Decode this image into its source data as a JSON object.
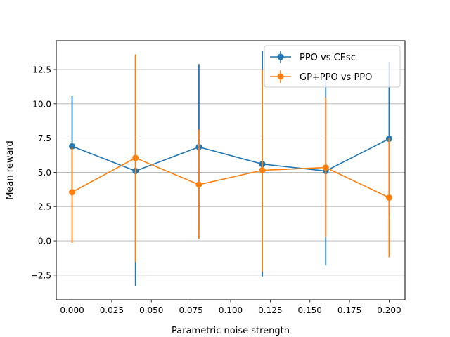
{
  "chart_data": {
    "type": "line",
    "title": "",
    "xlabel": "Parametric noise strength",
    "ylabel": "Mean reward",
    "x": [
      0.0,
      0.04,
      0.08,
      0.12,
      0.16,
      0.2
    ],
    "xlim": [
      -0.01,
      0.21
    ],
    "ylim": [
      -4.3,
      14.6
    ],
    "xticks": [
      0.0,
      0.025,
      0.05,
      0.075,
      0.1,
      0.125,
      0.15,
      0.175,
      0.2
    ],
    "xtick_labels": [
      "0.000",
      "0.025",
      "0.050",
      "0.075",
      "0.100",
      "0.125",
      "0.150",
      "0.175",
      "0.200"
    ],
    "yticks": [
      -2.5,
      0.0,
      2.5,
      5.0,
      7.5,
      10.0,
      12.5
    ],
    "ytick_labels": [
      "−2.5",
      "0.0",
      "2.5",
      "5.0",
      "7.5",
      "10.0",
      "12.5"
    ],
    "grid": "horizontal",
    "legend_position": "top-right",
    "series": [
      {
        "name": "PPO vs CEsc",
        "color": "#1f77b4",
        "values": [
          6.9,
          5.1,
          6.85,
          5.6,
          5.1,
          7.45
        ],
        "err_low": [
          3.25,
          -3.3,
          0.8,
          -2.6,
          -1.8,
          1.85
        ],
        "err_high": [
          10.55,
          13.5,
          12.9,
          13.85,
          12.0,
          13.05
        ]
      },
      {
        "name": "GP+PPO vs PPO",
        "color": "#ff7f0e",
        "values": [
          3.55,
          6.05,
          4.1,
          5.15,
          5.35,
          3.15
        ],
        "err_low": [
          -0.15,
          -1.55,
          0.15,
          -2.25,
          0.3,
          -1.2
        ],
        "err_high": [
          6.85,
          13.6,
          8.1,
          12.5,
          10.45,
          7.5
        ]
      }
    ]
  }
}
